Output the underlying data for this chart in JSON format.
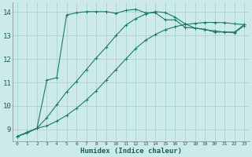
{
  "xlabel": "Humidex (Indice chaleur)",
  "bg_color": "#cceae8",
  "line_color": "#1a7a6e",
  "grid_color": "#aad4d0",
  "xlim": [
    -0.5,
    23.5
  ],
  "ylim": [
    8.5,
    14.4
  ],
  "yticks": [
    9,
    10,
    11,
    12,
    13,
    14
  ],
  "series1_x": [
    0,
    1,
    2,
    3,
    4,
    5,
    6,
    7,
    8,
    9,
    10,
    11,
    12,
    13,
    14,
    15,
    16,
    17,
    18,
    19,
    20,
    21,
    22,
    23
  ],
  "series1_y": [
    8.7,
    8.85,
    9.05,
    9.15,
    9.35,
    9.6,
    9.9,
    10.25,
    10.65,
    11.1,
    11.55,
    12.0,
    12.45,
    12.8,
    13.05,
    13.25,
    13.38,
    13.47,
    13.52,
    13.56,
    13.56,
    13.55,
    13.5,
    13.47
  ],
  "series2_x": [
    0,
    1,
    2,
    3,
    4,
    5,
    6,
    7,
    8,
    9,
    10,
    11,
    12,
    13,
    14,
    15,
    16,
    17,
    18,
    19,
    20,
    21,
    22,
    23
  ],
  "series2_y": [
    8.7,
    8.85,
    9.05,
    9.5,
    10.05,
    10.6,
    11.05,
    11.55,
    12.05,
    12.5,
    13.0,
    13.45,
    13.72,
    13.92,
    14.02,
    13.98,
    13.78,
    13.5,
    13.32,
    13.25,
    13.2,
    13.15,
    13.12,
    13.42
  ],
  "series3_x": [
    0,
    1,
    2,
    3,
    4,
    5,
    6,
    7,
    8,
    9,
    10,
    11,
    12,
    13,
    14,
    15,
    16,
    17,
    18,
    19,
    20,
    21,
    22,
    23
  ],
  "series3_y": [
    8.7,
    8.88,
    9.05,
    11.1,
    11.2,
    13.88,
    13.97,
    14.02,
    14.02,
    14.02,
    13.95,
    14.07,
    14.12,
    13.97,
    13.97,
    13.67,
    13.67,
    13.35,
    13.32,
    13.27,
    13.15,
    13.15,
    13.15,
    13.47
  ]
}
